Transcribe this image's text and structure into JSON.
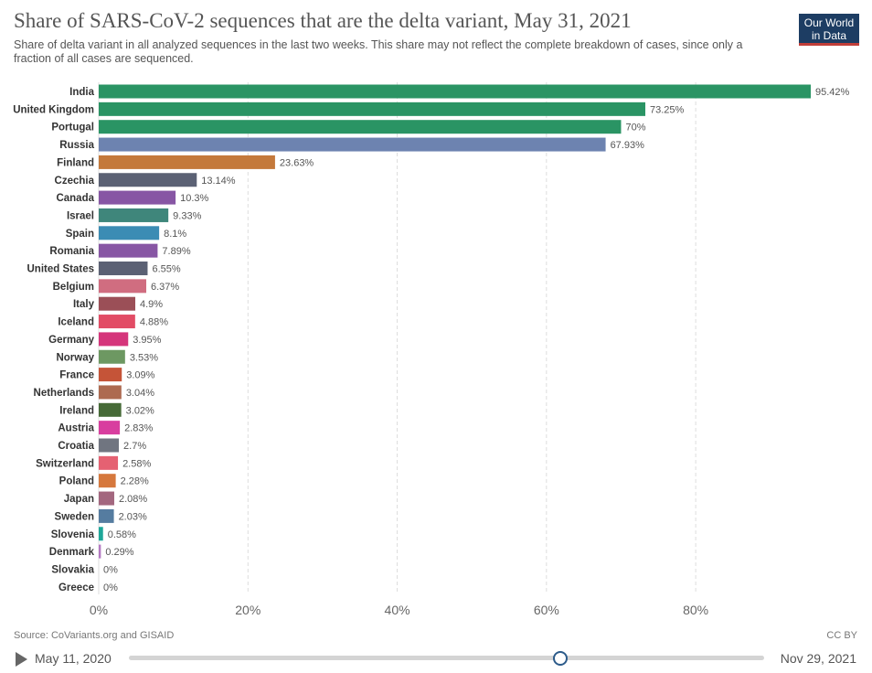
{
  "header": {
    "title": "Share of SARS-CoV-2 sequences that are the delta variant, May 31, 2021",
    "subtitle": "Share of delta variant in all analyzed sequences in the last two weeks. This share may not reflect the complete breakdown of cases, since only a fraction of all cases are sequenced.",
    "logo_line1": "Our World",
    "logo_line2": "in Data"
  },
  "chart_data": {
    "type": "bar",
    "orientation": "horizontal",
    "title": "Share of SARS-CoV-2 sequences that are the delta variant, May 31, 2021",
    "xlabel": "",
    "ylabel": "",
    "xlim": [
      0,
      95.42
    ],
    "x_ticks": [
      0,
      20,
      40,
      60,
      80
    ],
    "x_tick_labels": [
      "0%",
      "20%",
      "40%",
      "60%",
      "80%"
    ],
    "grid": "vertical dashed",
    "value_suffix": "%",
    "categories": [
      "India",
      "United Kingdom",
      "Portugal",
      "Russia",
      "Finland",
      "Czechia",
      "Canada",
      "Israel",
      "Spain",
      "Romania",
      "United States",
      "Belgium",
      "Italy",
      "Iceland",
      "Germany",
      "Norway",
      "France",
      "Netherlands",
      "Ireland",
      "Austria",
      "Croatia",
      "Switzerland",
      "Poland",
      "Japan",
      "Sweden",
      "Slovenia",
      "Denmark",
      "Slovakia",
      "Greece"
    ],
    "values": [
      95.42,
      73.25,
      70,
      67.93,
      23.63,
      13.14,
      10.3,
      9.33,
      8.1,
      7.89,
      6.55,
      6.37,
      4.9,
      4.88,
      3.95,
      3.53,
      3.09,
      3.04,
      3.02,
      2.83,
      2.7,
      2.58,
      2.28,
      2.08,
      2.03,
      0.58,
      0.29,
      0,
      0
    ],
    "value_labels": [
      "95.42%",
      "73.25%",
      "70%",
      "67.93%",
      "23.63%",
      "13.14%",
      "10.3%",
      "9.33%",
      "8.1%",
      "7.89%",
      "6.55%",
      "6.37%",
      "4.9%",
      "4.88%",
      "3.95%",
      "3.53%",
      "3.09%",
      "3.04%",
      "3.02%",
      "2.83%",
      "2.7%",
      "2.58%",
      "2.28%",
      "2.08%",
      "2.03%",
      "0.58%",
      "0.29%",
      "0%",
      "0%"
    ],
    "colors": [
      "#2a9464",
      "#2a9464",
      "#2a9464",
      "#6d83b0",
      "#c4793b",
      "#5b6174",
      "#8756a4",
      "#3f867b",
      "#3b8cb4",
      "#8756a4",
      "#5b6174",
      "#d06d80",
      "#9b4f57",
      "#e24c65",
      "#d5357b",
      "#6d9862",
      "#c55438",
      "#ad6a50",
      "#466a37",
      "#d83e9f",
      "#707580",
      "#e56172",
      "#d6783d",
      "#a3677f",
      "#557ca0",
      "#1ea799",
      "#b479c3",
      "#cccccc",
      "#cccccc"
    ]
  },
  "footer": {
    "source": "Source: CoVariants.org and GISAID",
    "license": "CC BY"
  },
  "timeline": {
    "start_label": "May 11, 2020",
    "end_label": "Nov 29, 2021",
    "position_fraction": 0.679
  }
}
